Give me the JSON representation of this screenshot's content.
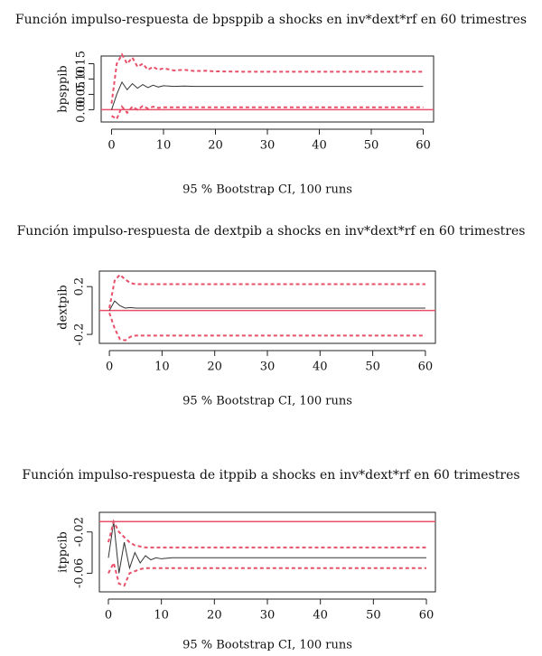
{
  "chart_data": [
    {
      "type": "line",
      "title": "Función impulso-respuesta de bpsppib a shocks en inv*dext*rf en 60 trimestres",
      "x_label": "95 % Bootstrap CI, 100 runs",
      "y_label": "bpsppib",
      "x": [
        0,
        1,
        2,
        3,
        4,
        5,
        6,
        7,
        8,
        9,
        10,
        12,
        14,
        16,
        18,
        20,
        25,
        30,
        40,
        50,
        60
      ],
      "xlim": [
        -2,
        62
      ],
      "xticks": [
        0,
        10,
        20,
        30,
        40,
        50,
        60
      ],
      "ylim": [
        -0.04,
        0.175
      ],
      "yticks": [
        {
          "value": 0,
          "label": "0.00"
        },
        0.05,
        {
          "value": 0.1,
          "label": "0.10"
        },
        0.15
      ],
      "hline": 0,
      "hline_color": "#e8506a",
      "series": [
        {
          "color": "#333333",
          "dashed": false,
          "values": [
            0,
            0.05,
            0.09,
            0.065,
            0.085,
            0.07,
            0.082,
            0.072,
            0.08,
            0.074,
            0.078,
            0.076,
            0.077,
            0.076,
            0.076,
            0.076,
            0.076,
            0.076,
            0.076,
            0.076,
            0.076
          ]
        },
        {
          "color": "#e8506a",
          "dashed": true,
          "values": [
            0.02,
            0.15,
            0.18,
            0.15,
            0.17,
            0.14,
            0.15,
            0.13,
            0.14,
            0.13,
            0.135,
            0.128,
            0.13,
            0.126,
            0.127,
            0.125,
            0.124,
            0.124,
            0.124,
            0.124,
            0.124
          ]
        },
        {
          "color": "#e8506a",
          "dashed": true,
          "values": [
            -0.02,
            -0.03,
            0.01,
            -0.01,
            0.01,
            0,
            0.012,
            0.004,
            0.01,
            0.006,
            0.008,
            0.008,
            0.008,
            0.008,
            0.008,
            0.008,
            0.008,
            0.008,
            0.008,
            0.008,
            0.008
          ]
        }
      ]
    },
    {
      "type": "line",
      "title": "Función impulso-respuesta de dextpib a shocks en inv*dext*rf en 60 trimestres",
      "x_label": "95 % Bootstrap CI, 100 runs",
      "y_label": "dextpib",
      "x": [
        0,
        1,
        2,
        3,
        4,
        5,
        6,
        7,
        8,
        9,
        10,
        12,
        14,
        16,
        18,
        20,
        25,
        30,
        40,
        50,
        60
      ],
      "xlim": [
        -1.9,
        61.9
      ],
      "xticks": [
        0,
        10,
        20,
        30,
        40,
        50,
        60
      ],
      "ylim": [
        -0.275,
        0.33
      ],
      "yticks": [
        -0.2,
        0.2
      ],
      "hline": 0,
      "hline_color": "#e8506a",
      "series": [
        {
          "color": "#333333",
          "dashed": false,
          "values": [
            0,
            0.08,
            0.04,
            0.02,
            0.025,
            0.02,
            0.02,
            0.02,
            0.02,
            0.02,
            0.02,
            0.02,
            0.02,
            0.02,
            0.02,
            0.02,
            0.02,
            0.02,
            0.02,
            0.02,
            0.02
          ]
        },
        {
          "color": "#e8506a",
          "dashed": true,
          "values": [
            0.02,
            0.25,
            0.3,
            0.26,
            0.23,
            0.22,
            0.22,
            0.22,
            0.22,
            0.22,
            0.22,
            0.22,
            0.22,
            0.22,
            0.22,
            0.22,
            0.22,
            0.22,
            0.22,
            0.22,
            0.22
          ]
        },
        {
          "color": "#e8506a",
          "dashed": true,
          "values": [
            -0.02,
            -0.15,
            -0.24,
            -0.25,
            -0.22,
            -0.21,
            -0.21,
            -0.21,
            -0.21,
            -0.21,
            -0.21,
            -0.21,
            -0.21,
            -0.21,
            -0.21,
            -0.21,
            -0.21,
            -0.21,
            -0.21,
            -0.21,
            -0.21
          ]
        }
      ]
    },
    {
      "type": "line",
      "title": "Función impulso-respuesta de itppib a shocks en inv*dext*rf en 60 trimestres",
      "x_label": "95 % Bootstrap CI, 100 runs",
      "y_label": "itppcib",
      "x": [
        0,
        1,
        2,
        3,
        4,
        5,
        6,
        7,
        8,
        9,
        10,
        12,
        14,
        16,
        18,
        20,
        25,
        30,
        40,
        50,
        60
      ],
      "xlim": [
        -1.7,
        61.7
      ],
      "xticks": [
        0,
        10,
        20,
        30,
        40,
        50,
        60
      ],
      "ylim": [
        -0.078,
        -0.001
      ],
      "yticks": [
        -0.06,
        -0.02
      ],
      "hline": -0.01,
      "hline_color": "#e8506a",
      "series": [
        {
          "color": "#333333",
          "dashed": false,
          "values": [
            -0.045,
            -0.01,
            -0.06,
            -0.03,
            -0.055,
            -0.04,
            -0.05,
            -0.043,
            -0.047,
            -0.045,
            -0.046,
            -0.045,
            -0.045,
            -0.045,
            -0.045,
            -0.045,
            -0.045,
            -0.045,
            -0.045,
            -0.045,
            -0.045
          ]
        },
        {
          "color": "#e8506a",
          "dashed": true,
          "values": [
            -0.03,
            -0.01,
            -0.02,
            -0.025,
            -0.03,
            -0.033,
            -0.034,
            -0.035,
            -0.035,
            -0.035,
            -0.035,
            -0.035,
            -0.035,
            -0.035,
            -0.035,
            -0.035,
            -0.035,
            -0.035,
            -0.035,
            -0.035,
            -0.035
          ]
        },
        {
          "color": "#e8506a",
          "dashed": true,
          "values": [
            -0.06,
            -0.05,
            -0.07,
            -0.072,
            -0.06,
            -0.058,
            -0.056,
            -0.055,
            -0.055,
            -0.055,
            -0.055,
            -0.055,
            -0.055,
            -0.055,
            -0.055,
            -0.055,
            -0.055,
            -0.055,
            -0.055,
            -0.055,
            -0.055
          ]
        }
      ]
    }
  ]
}
